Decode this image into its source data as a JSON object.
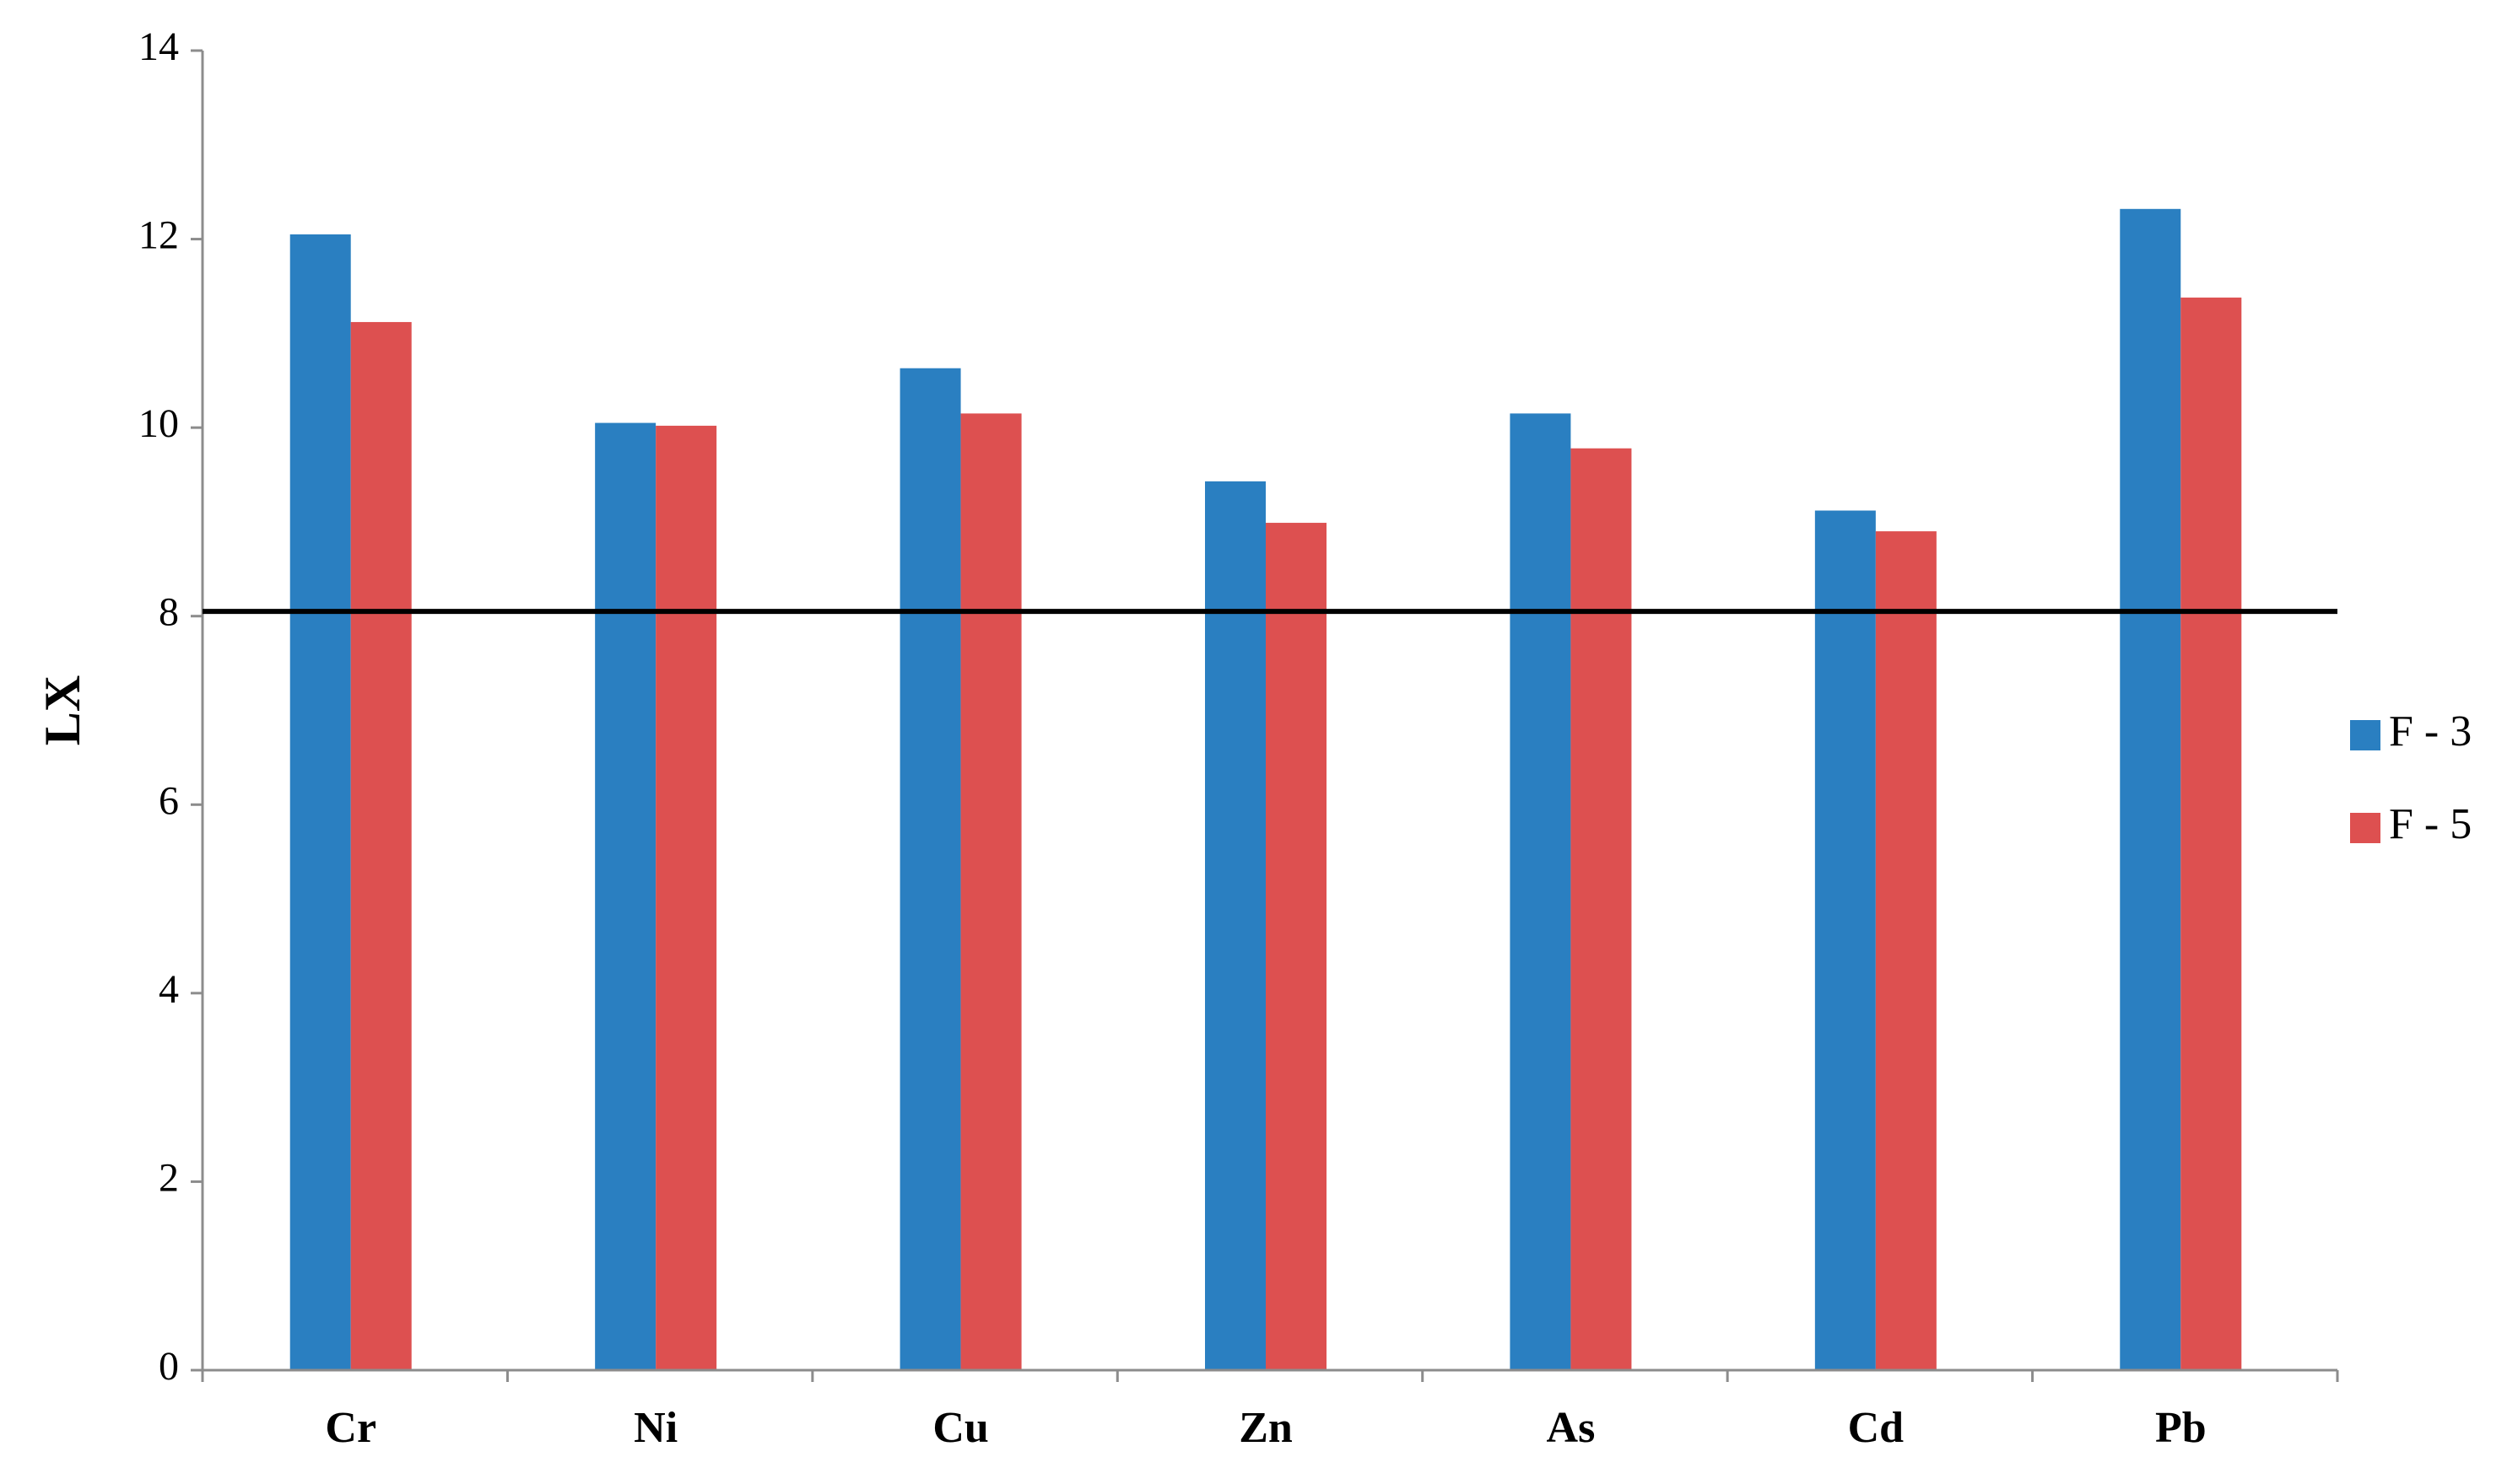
{
  "chart_data": {
    "type": "bar",
    "title": "",
    "xlabel": "",
    "ylabel": "LX",
    "ylim": [
      0,
      14
    ],
    "yticks": [
      0,
      2,
      4,
      6,
      8,
      10,
      12,
      14
    ],
    "categories": [
      "Cr",
      "Ni",
      "Cu",
      "Zn",
      "As",
      "Cd",
      "Pb"
    ],
    "series": [
      {
        "name": "F - 3",
        "color": "#2a7fc1",
        "values": [
          12.05,
          10.05,
          10.63,
          9.43,
          10.15,
          9.12,
          12.32
        ]
      },
      {
        "name": "F - 5",
        "color": "#dd5050",
        "values": [
          11.12,
          10.02,
          10.15,
          8.99,
          9.78,
          8.9,
          11.38
        ]
      }
    ],
    "reference_line": {
      "value": 8.05,
      "color": "#000000"
    },
    "grid": false,
    "legend_position": "right"
  }
}
